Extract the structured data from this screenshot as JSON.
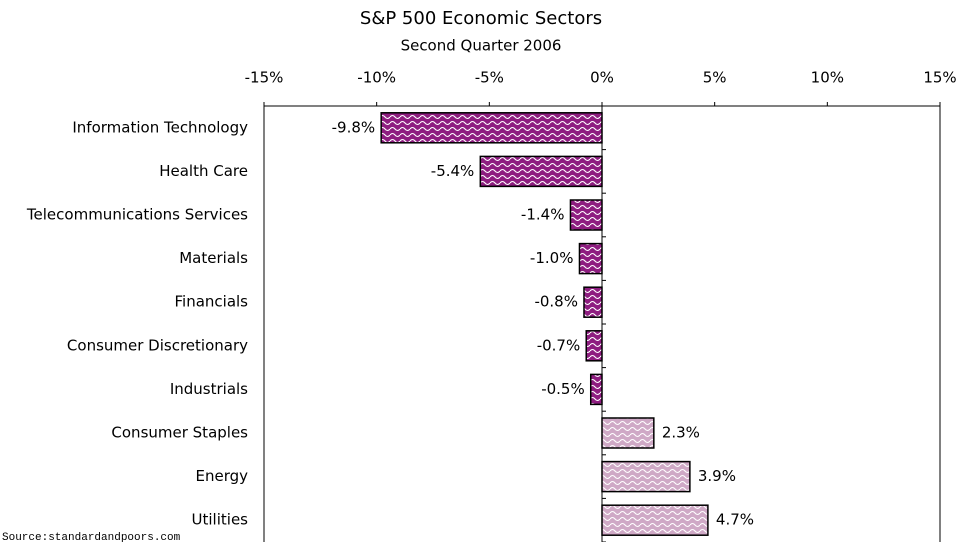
{
  "chart_data": {
    "type": "bar",
    "orientation": "horizontal",
    "title": "S&P 500 Economic Sectors",
    "subtitle": "Second Quarter 2006",
    "source": "Source:standardandpoors.com",
    "categories": [
      "Information Technology",
      "Health Care",
      "Telecommunications Services",
      "Materials",
      "Financials",
      "Consumer Discretionary",
      "Industrials",
      "Consumer Staples",
      "Energy",
      "Utilities"
    ],
    "values": [
      -9.8,
      -5.4,
      -1.4,
      -1.0,
      -0.8,
      -0.7,
      -0.5,
      2.3,
      3.9,
      4.7
    ],
    "value_labels": [
      "-9.8%",
      "-5.4%",
      "-1.4%",
      "-1.0%",
      "-0.8%",
      "-0.7%",
      "-0.5%",
      "2.3%",
      "3.9%",
      "4.7%"
    ],
    "negative_color": "#8e1d80",
    "positive_color": "#cfa9c6",
    "xlim": [
      -15,
      15
    ],
    "xticks": [
      {
        "value": -15,
        "label": "-15%"
      },
      {
        "value": -10,
        "label": "-10%"
      },
      {
        "value": -5,
        "label": "-5%"
      },
      {
        "value": 0,
        "label": "0%"
      },
      {
        "value": 5,
        "label": "5%"
      },
      {
        "value": 10,
        "label": "10%"
      },
      {
        "value": 15,
        "label": "15%"
      }
    ],
    "grid": false
  }
}
